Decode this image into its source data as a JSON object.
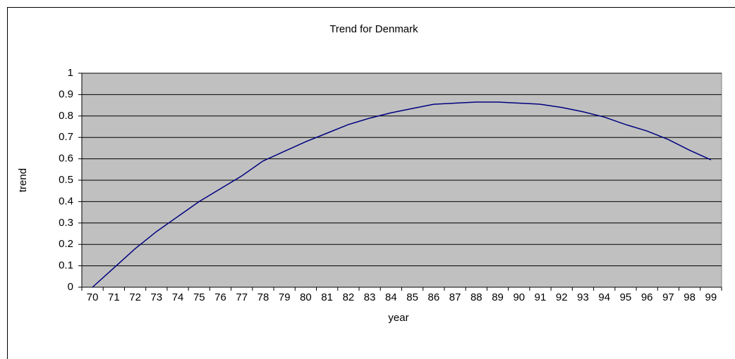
{
  "chart_data": {
    "type": "line",
    "title": "Trend for Denmark",
    "x_label": "year",
    "y_label": "trend",
    "categories": [
      "70",
      "71",
      "72",
      "73",
      "74",
      "75",
      "76",
      "77",
      "78",
      "79",
      "80",
      "81",
      "82",
      "83",
      "84",
      "85",
      "86",
      "87",
      "88",
      "89",
      "90",
      "91",
      "92",
      "93",
      "94",
      "95",
      "96",
      "97",
      "98",
      "99"
    ],
    "values": [
      0,
      0.09,
      0.18,
      0.26,
      0.33,
      0.4,
      0.46,
      0.52,
      0.59,
      0.635,
      0.68,
      0.72,
      0.76,
      0.79,
      0.815,
      0.835,
      0.855,
      0.86,
      0.865,
      0.865,
      0.86,
      0.855,
      0.84,
      0.82,
      0.795,
      0.76,
      0.73,
      0.69,
      0.64,
      0.595
    ],
    "color": "#000080",
    "plot_background": "#c0c0c0",
    "ylim": [
      0,
      1
    ],
    "yticks": [
      0,
      0.1,
      0.2,
      0.3,
      0.4,
      0.5,
      0.6,
      0.7,
      0.8,
      0.9,
      1
    ],
    "grid": true
  }
}
